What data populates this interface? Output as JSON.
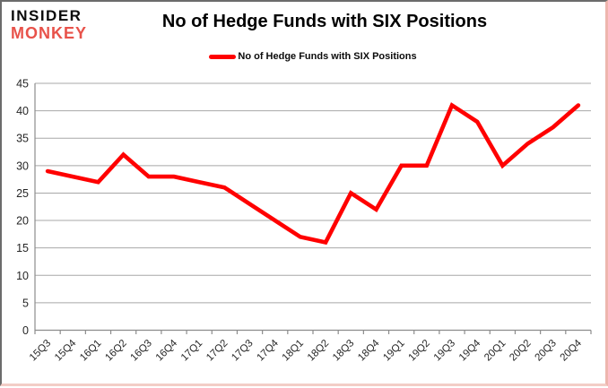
{
  "header": {
    "logo_line1": "INSIDER",
    "logo_line2": "MONKEY",
    "title": "No of Hedge Funds with SIX Positions"
  },
  "legend": {
    "label": "No of Hedge Funds with SIX Positions"
  },
  "colors": {
    "series_line": "#ff0000",
    "logo_accent": "#e8524a",
    "gridline": "#a8a8a8",
    "axis": "#8c8c8c",
    "tick_text": "#262626"
  },
  "chart_data": {
    "type": "line",
    "title": "No of Hedge Funds with SIX Positions",
    "series_name": "No of Hedge Funds with SIX Positions",
    "categories": [
      "15Q3",
      "15Q4",
      "16Q1",
      "16Q2",
      "16Q3",
      "16Q4",
      "17Q1",
      "17Q2",
      "17Q3",
      "17Q4",
      "18Q1",
      "18Q2",
      "18Q3",
      "18Q4",
      "19Q1",
      "19Q2",
      "19Q3",
      "19Q4",
      "20Q1",
      "20Q2",
      "20Q3",
      "20Q4"
    ],
    "values": [
      29,
      28,
      27,
      32,
      28,
      28,
      27,
      26,
      23,
      20,
      17,
      16,
      25,
      22,
      30,
      30,
      41,
      38,
      30,
      34,
      37,
      41
    ],
    "xlabel": "",
    "ylabel": "",
    "ylim": [
      0,
      45
    ],
    "yticks": [
      0,
      5,
      10,
      15,
      20,
      25,
      30,
      35,
      40,
      45
    ],
    "grid": "horizontal",
    "legend_position": "top",
    "x_label_rotation": -45,
    "line_color": "#ff0000"
  }
}
